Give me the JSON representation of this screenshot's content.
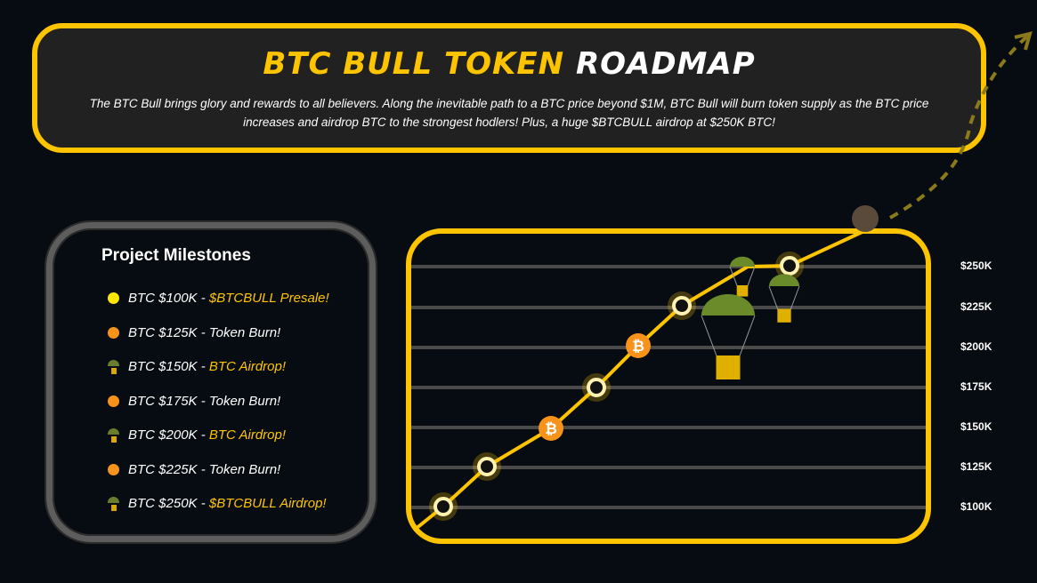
{
  "header": {
    "title_yellow": "BTC BULL TOKEN",
    "title_white": "ROADMAP",
    "description": "The BTC Bull brings glory and rewards to all believers. Along the inevitable path to a BTC price beyond $1M, BTC Bull will burn token supply as the BTC price increases and airdrop BTC to the strongest hodlers! Plus, a huge $BTCBULL airdrop at $250K BTC!"
  },
  "milestones": {
    "title": "Project Milestones",
    "items": [
      {
        "icon": "yellow-dot",
        "price": "BTC $100K - ",
        "label": "$BTCBULL Presale!",
        "highlight": true
      },
      {
        "icon": "orange-dot",
        "price": "BTC $125K - ",
        "label": " Token Burn!",
        "highlight": false
      },
      {
        "icon": "parachute",
        "price": "BTC $150K - ",
        "label": "BTC Airdrop!",
        "highlight": true
      },
      {
        "icon": "orange-dot",
        "price": "BTC $175K - ",
        "label": "Token Burn!",
        "highlight": false
      },
      {
        "icon": "parachute",
        "price": "BTC $200K - ",
        "label": "BTC Airdrop!",
        "highlight": true
      },
      {
        "icon": "orange-dot",
        "price": "BTC $225K - ",
        "label": "Token Burn!",
        "highlight": false
      },
      {
        "icon": "parachute",
        "price": "BTC $250K - ",
        "label": "$BTCBULL Airdrop!",
        "highlight": true
      }
    ]
  },
  "chart": {
    "levels": [
      "$250K",
      "$225K",
      "$200K",
      "$175K",
      "$150K",
      "$125K",
      "$100K"
    ]
  },
  "colors": {
    "accent": "#ffc400",
    "orange": "#f7931a",
    "background": "#070c12",
    "panel": "#212121"
  }
}
